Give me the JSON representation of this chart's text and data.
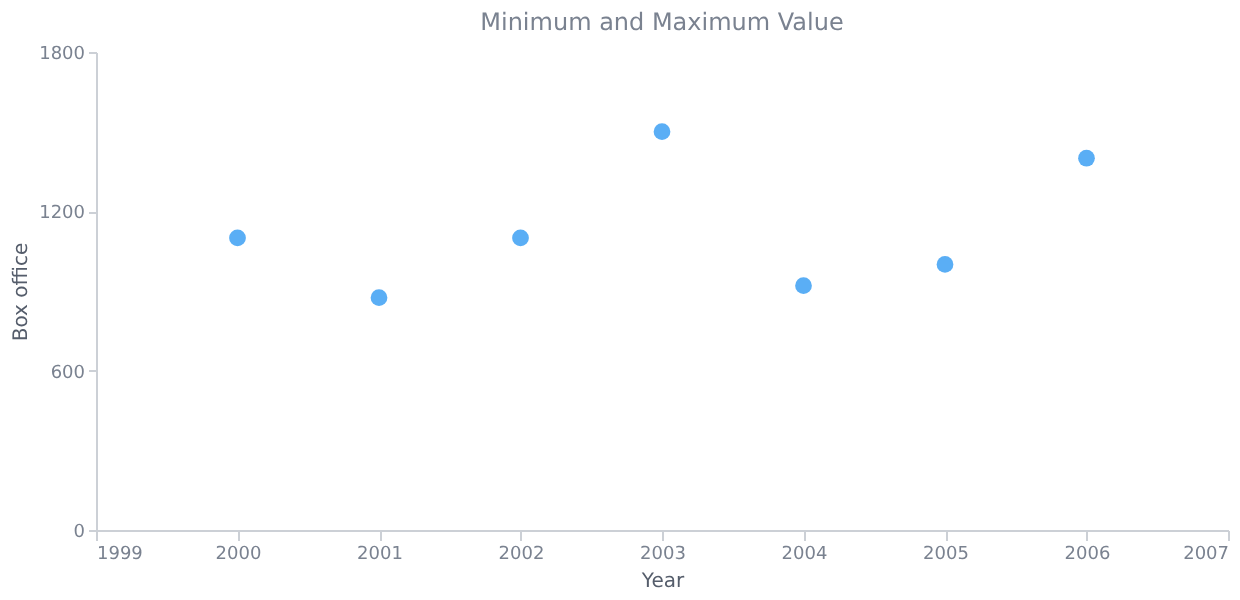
{
  "chart_data": {
    "type": "scatter",
    "title": "Minimum and Maximum Value",
    "xlabel": "Year",
    "ylabel": "Box office",
    "x": [
      2000,
      2001,
      2002,
      2003,
      2004,
      2005,
      2006
    ],
    "values": [
      1100,
      875,
      1100,
      1500,
      920,
      1000,
      1400
    ],
    "color": "#5aaef5",
    "marker": "circle",
    "xlim": [
      1999,
      2007
    ],
    "xticks": [
      1999,
      2000,
      2001,
      2002,
      2003,
      2004,
      2005,
      2006,
      2007
    ],
    "ylim": [
      0,
      1800
    ],
    "yticks": [
      0,
      600,
      1200,
      1800
    ],
    "grid": false
  }
}
